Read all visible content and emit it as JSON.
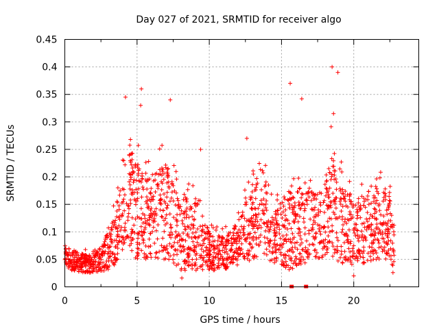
{
  "chart_data": {
    "type": "scatter",
    "title": "Day 027 of 2021, SRMTID for receiver algo",
    "xlabel": "GPS time / hours",
    "ylabel": "SRMTID / TECUs",
    "xlim": [
      0,
      24.5
    ],
    "ylim": [
      0,
      0.45
    ],
    "xticks": [
      0,
      5,
      10,
      15,
      20
    ],
    "xtick_labels": [
      "0",
      "5",
      "10",
      "15",
      "20"
    ],
    "yticks": [
      0,
      0.05,
      0.1,
      0.15,
      0.2,
      0.25,
      0.3,
      0.35,
      0.4,
      0.45
    ],
    "ytick_labels": [
      "0",
      "0.05",
      "0.1",
      "0.15",
      "0.2",
      "0.25",
      "0.3",
      "0.35",
      "0.4",
      "0.45"
    ],
    "grid": true,
    "marker": "+",
    "series": [
      {
        "name": "SRMTID",
        "color": "#ff0000",
        "envelope": [
          {
            "x": 0.0,
            "y_low": 0.035,
            "y_mid": 0.055,
            "y_high": 0.085
          },
          {
            "x": 1.0,
            "y_low": 0.025,
            "y_mid": 0.045,
            "y_high": 0.07
          },
          {
            "x": 2.0,
            "y_low": 0.025,
            "y_mid": 0.045,
            "y_high": 0.065
          },
          {
            "x": 3.0,
            "y_low": 0.03,
            "y_mid": 0.06,
            "y_high": 0.12
          },
          {
            "x": 3.5,
            "y_low": 0.04,
            "y_mid": 0.08,
            "y_high": 0.16
          },
          {
            "x": 4.0,
            "y_low": 0.05,
            "y_mid": 0.12,
            "y_high": 0.24
          },
          {
            "x": 4.5,
            "y_low": 0.06,
            "y_mid": 0.16,
            "y_high": 0.3
          },
          {
            "x": 5.0,
            "y_low": 0.05,
            "y_mid": 0.14,
            "y_high": 0.28
          },
          {
            "x": 5.5,
            "y_low": 0.05,
            "y_mid": 0.12,
            "y_high": 0.24
          },
          {
            "x": 6.5,
            "y_low": 0.05,
            "y_mid": 0.14,
            "y_high": 0.25
          },
          {
            "x": 7.0,
            "y_low": 0.05,
            "y_mid": 0.15,
            "y_high": 0.27
          },
          {
            "x": 8.0,
            "y_low": 0.03,
            "y_mid": 0.09,
            "y_high": 0.2
          },
          {
            "x": 9.0,
            "y_low": 0.03,
            "y_mid": 0.1,
            "y_high": 0.2
          },
          {
            "x": 10.0,
            "y_low": 0.03,
            "y_mid": 0.06,
            "y_high": 0.12
          },
          {
            "x": 11.0,
            "y_low": 0.03,
            "y_mid": 0.06,
            "y_high": 0.11
          },
          {
            "x": 12.0,
            "y_low": 0.04,
            "y_mid": 0.09,
            "y_high": 0.14
          },
          {
            "x": 13.0,
            "y_low": 0.05,
            "y_mid": 0.11,
            "y_high": 0.22
          },
          {
            "x": 13.7,
            "y_low": 0.06,
            "y_mid": 0.14,
            "y_high": 0.25
          },
          {
            "x": 14.5,
            "y_low": 0.04,
            "y_mid": 0.09,
            "y_high": 0.16
          },
          {
            "x": 15.5,
            "y_low": 0.03,
            "y_mid": 0.09,
            "y_high": 0.2
          },
          {
            "x": 16.5,
            "y_low": 0.04,
            "y_mid": 0.12,
            "y_high": 0.22
          },
          {
            "x": 17.5,
            "y_low": 0.05,
            "y_mid": 0.12,
            "y_high": 0.2
          },
          {
            "x": 18.5,
            "y_low": 0.05,
            "y_mid": 0.14,
            "y_high": 0.3
          },
          {
            "x": 19.5,
            "y_low": 0.04,
            "y_mid": 0.11,
            "y_high": 0.2
          },
          {
            "x": 20.5,
            "y_low": 0.04,
            "y_mid": 0.1,
            "y_high": 0.2
          },
          {
            "x": 21.5,
            "y_low": 0.05,
            "y_mid": 0.12,
            "y_high": 0.22
          },
          {
            "x": 22.5,
            "y_low": 0.04,
            "y_mid": 0.1,
            "y_high": 0.2
          },
          {
            "x": 22.8,
            "y_low": 0.02,
            "y_mid": 0.06,
            "y_high": 0.12
          }
        ],
        "highlighted_points": [
          {
            "x": 4.2,
            "y": 0.345
          },
          {
            "x": 5.3,
            "y": 0.36
          },
          {
            "x": 5.25,
            "y": 0.33
          },
          {
            "x": 7.3,
            "y": 0.34
          },
          {
            "x": 15.6,
            "y": 0.37
          },
          {
            "x": 16.4,
            "y": 0.342
          },
          {
            "x": 18.5,
            "y": 0.4
          },
          {
            "x": 18.9,
            "y": 0.39
          },
          {
            "x": 18.6,
            "y": 0.315
          },
          {
            "x": 12.6,
            "y": 0.27
          },
          {
            "x": 9.4,
            "y": 0.25
          },
          {
            "x": 8.1,
            "y": 0.016
          },
          {
            "x": 20.0,
            "y": 0.02
          }
        ],
        "zero_points": [
          {
            "x": 15.7,
            "y": 0.0
          },
          {
            "x": 16.7,
            "y": 0.0
          }
        ]
      }
    ]
  }
}
